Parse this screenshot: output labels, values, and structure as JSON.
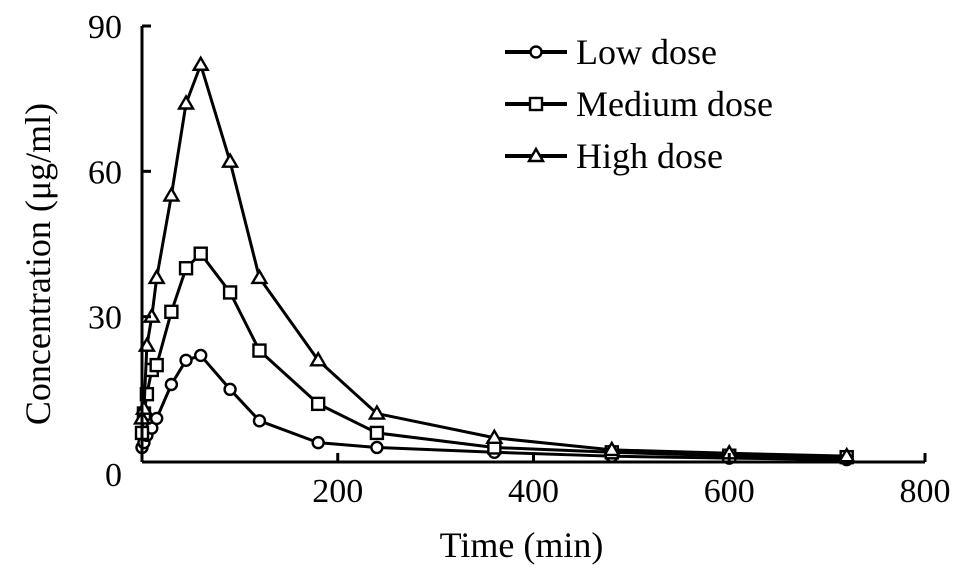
{
  "chart_data": {
    "type": "line",
    "title": "",
    "xlabel": "Time (min)",
    "ylabel": "Concentration (μg/ml)",
    "xlim": [
      0,
      800
    ],
    "ylim": [
      0,
      90
    ],
    "x_ticks": [
      "200",
      "400",
      "600",
      "800"
    ],
    "y_ticks": [
      "0",
      "30",
      "60",
      "90"
    ],
    "grid": false,
    "legend_position": "top-right",
    "series": [
      {
        "name": "Low dose",
        "marker": "circle",
        "color": "#000000",
        "x": [
          0,
          2,
          5,
          10,
          15,
          30,
          45,
          60,
          90,
          120,
          180,
          240,
          360,
          480,
          600,
          720
        ],
        "y": [
          3,
          4,
          5.5,
          7,
          9,
          16,
          21,
          22,
          15,
          8.5,
          4,
          3,
          2,
          1.2,
          0.8,
          0.5
        ]
      },
      {
        "name": "Medium dose",
        "marker": "square",
        "color": "#000000",
        "x": [
          0,
          2,
          5,
          10,
          15,
          30,
          45,
          60,
          90,
          120,
          180,
          240,
          360,
          480,
          600,
          720
        ],
        "y": [
          6,
          10,
          14,
          19,
          20,
          31,
          40,
          43,
          35,
          23,
          12,
          6,
          3,
          2,
          1.3,
          1
        ]
      },
      {
        "name": "High dose",
        "marker": "triangle",
        "color": "#000000",
        "x": [
          0,
          2,
          5,
          10,
          15,
          30,
          45,
          60,
          90,
          120,
          180,
          240,
          360,
          480,
          600,
          720
        ],
        "y": [
          9,
          11,
          24,
          30,
          38,
          55,
          74,
          82,
          62,
          38,
          21,
          10,
          5,
          2.5,
          1.8,
          1.2
        ]
      }
    ]
  }
}
